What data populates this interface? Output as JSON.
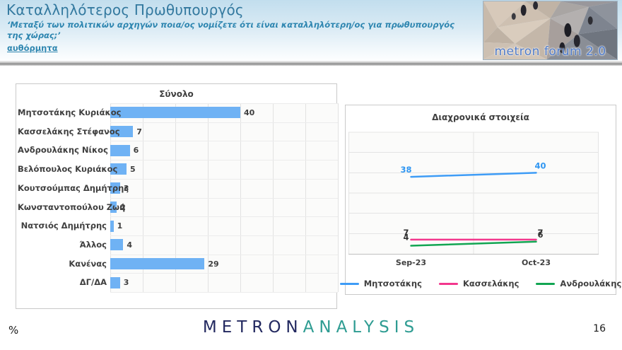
{
  "header": {
    "title": "Καταλληλότερος Πρωθυπουργός",
    "subtitle": "‘Μεταξύ των πολιτικών αρχηγών ποια/ος νομίζετε ότι είναι καταλληλότερη/ος για πρωθυπουργός της χώρας;’",
    "note": "αυθόρμητα",
    "logo_text": "metron forum 2.0"
  },
  "footer": {
    "unit_label": "%",
    "brand_part1": "METRON",
    "brand_part2": "ANALYSIS",
    "page_number": "16"
  },
  "colors": {
    "bar_fill": "#6fb2f4",
    "series_blue": "#3e9cf6",
    "series_pink": "#f2378d",
    "series_green": "#12a552",
    "dark_label": "#333333",
    "blue_label": "#2f96f2"
  },
  "chart_data": [
    {
      "type": "bar",
      "orientation": "horizontal",
      "title": "Σύνολο",
      "categories": [
        "Μητσοτάκης Κυριάκος",
        "Κασσελάκης Στέφανος",
        "Ανδρουλάκης Νίκος",
        "Βελόπουλος Κυριάκος",
        "Κουτσούμπας Δημήτρης",
        "Κωνσταντοπούλου Ζωή",
        "Νατσιός Δημήτρης",
        "Άλλος",
        "Κανένας",
        "ΔΓ/ΔΑ"
      ],
      "values": [
        40,
        7,
        6,
        5,
        3,
        2,
        1,
        4,
        29,
        3
      ],
      "xlabel": "",
      "ylabel": "",
      "xlim": [
        0,
        70
      ],
      "grid_step": 10,
      "grid": true,
      "unit": "%"
    },
    {
      "type": "line",
      "title": "Διαχρονικά στοιχεία",
      "x": [
        "Sep-23",
        "Oct-23"
      ],
      "series": [
        {
          "name": "Μητσοτάκης",
          "values": [
            38,
            40
          ],
          "color": "#3e9cf6"
        },
        {
          "name": "Κασσελάκης",
          "values": [
            7,
            7
          ],
          "color": "#f2378d"
        },
        {
          "name": "Ανδρουλάκης",
          "values": [
            4,
            6
          ],
          "color": "#12a552"
        }
      ],
      "ylim": [
        0,
        60
      ],
      "grid_step": 10,
      "grid": true,
      "legend_position": "bottom",
      "unit": "%"
    }
  ]
}
